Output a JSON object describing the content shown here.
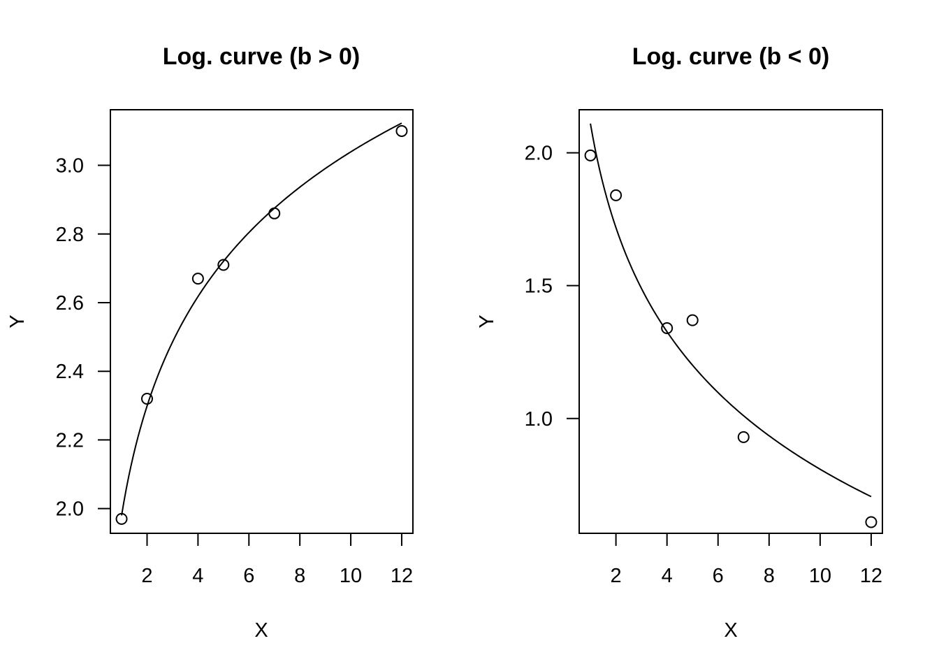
{
  "chart_data": [
    {
      "type": "scatter",
      "title": "Log. curve (b > 0)",
      "xlabel": "X",
      "ylabel": "Y",
      "xlim": [
        0.56,
        12.44
      ],
      "ylim": [
        1.928,
        3.162
      ],
      "xticks": [
        2,
        4,
        6,
        8,
        10,
        12
      ],
      "xtick_labels": [
        "2",
        "4",
        "6",
        "8",
        "10",
        "12"
      ],
      "yticks": [
        2.0,
        2.2,
        2.4,
        2.6,
        2.8,
        3.0
      ],
      "ytick_labels": [
        "2.0",
        "2.2",
        "2.4",
        "2.6",
        "2.8",
        "3.0"
      ],
      "grid": false,
      "legend": false,
      "points": {
        "x": [
          1,
          2,
          4,
          5,
          7,
          12
        ],
        "y": [
          1.97,
          2.32,
          2.67,
          2.71,
          2.86,
          3.1
        ]
      },
      "fit": {
        "form": "y = a + b*ln(x)",
        "a": 1.98,
        "b": 0.46,
        "x_range": [
          1,
          12
        ]
      }
    },
    {
      "type": "scatter",
      "title": "Log. curve (b < 0)",
      "xlabel": "X",
      "ylabel": "Y",
      "xlim": [
        0.56,
        12.44
      ],
      "ylim": [
        0.568,
        2.162
      ],
      "xticks": [
        2,
        4,
        6,
        8,
        10,
        12
      ],
      "xtick_labels": [
        "2",
        "4",
        "6",
        "8",
        "10",
        "12"
      ],
      "yticks": [
        1.0,
        1.5,
        2.0
      ],
      "ytick_labels": [
        "1.0",
        "1.5",
        "2.0"
      ],
      "grid": false,
      "legend": false,
      "points": {
        "x": [
          1,
          2,
          4,
          5,
          7,
          12
        ],
        "y": [
          1.99,
          1.84,
          1.34,
          1.37,
          0.93,
          0.61
        ]
      },
      "fit": {
        "form": "y = a + b*ln(x)",
        "a": 2.11,
        "b": -0.565,
        "x_range": [
          1,
          12
        ]
      }
    }
  ]
}
